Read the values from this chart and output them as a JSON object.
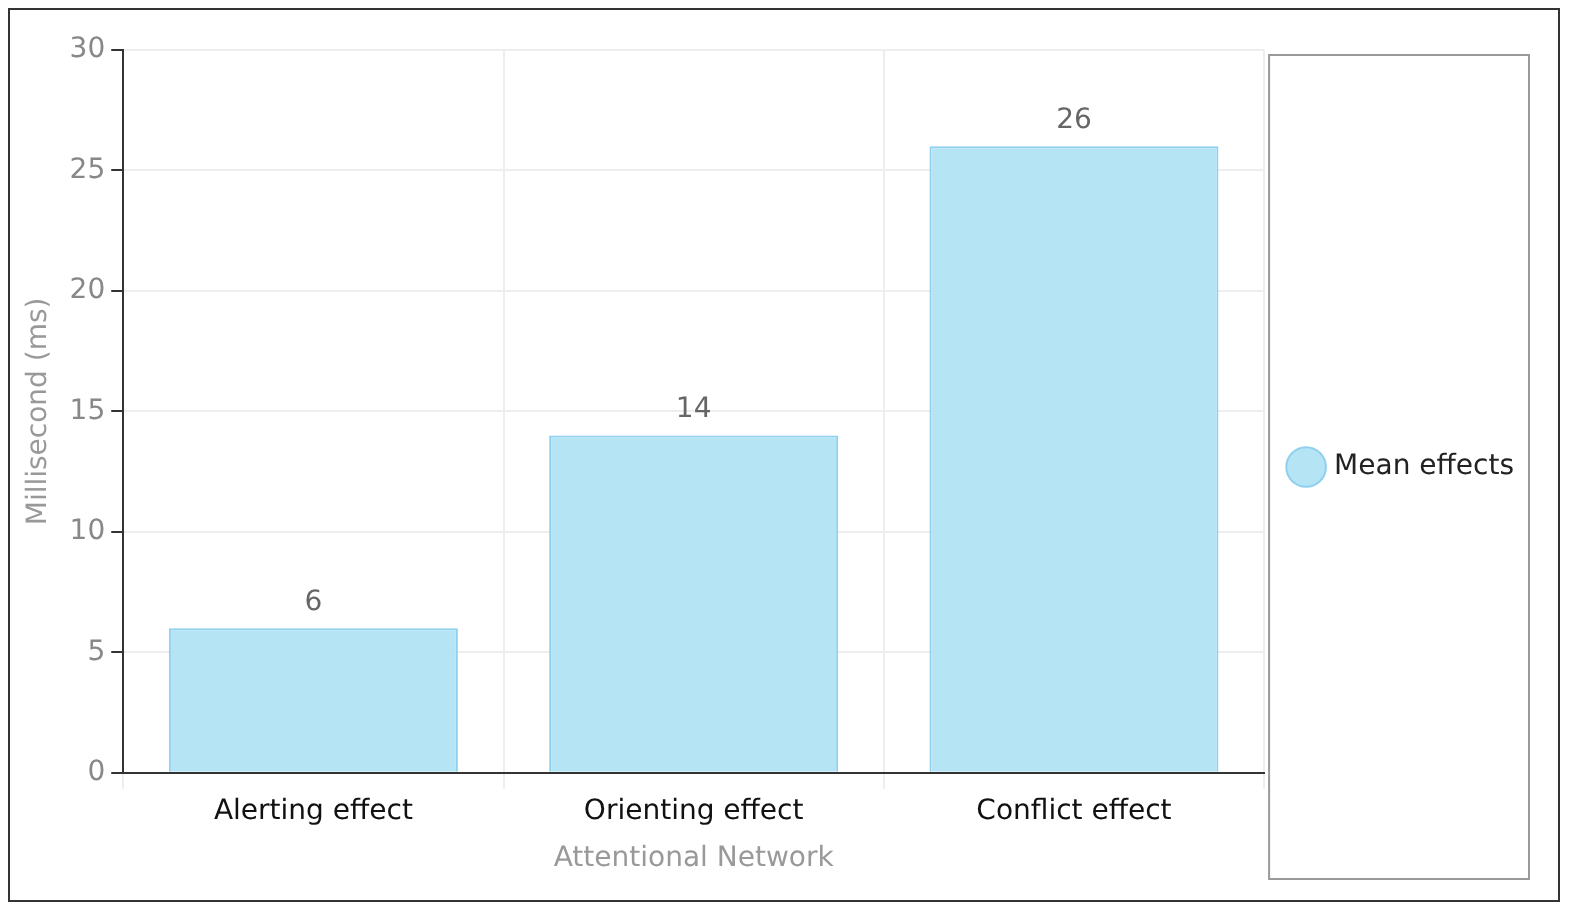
{
  "chart_data": {
    "type": "bar",
    "xlabel": "Attentional Network",
    "ylabel": "Millisecond (ms)",
    "categories": [
      "Alerting effect",
      "Orienting effect",
      "Conflict effect"
    ],
    "series": [
      {
        "name": "Mean effects",
        "color": "#b5e5f5",
        "values": [
          6,
          14,
          26
        ]
      }
    ],
    "ylim": [
      0,
      30
    ],
    "yticks": [
      0,
      5,
      10,
      15,
      20,
      25,
      30
    ],
    "grid": true,
    "legend": "right",
    "data_labels": true
  }
}
